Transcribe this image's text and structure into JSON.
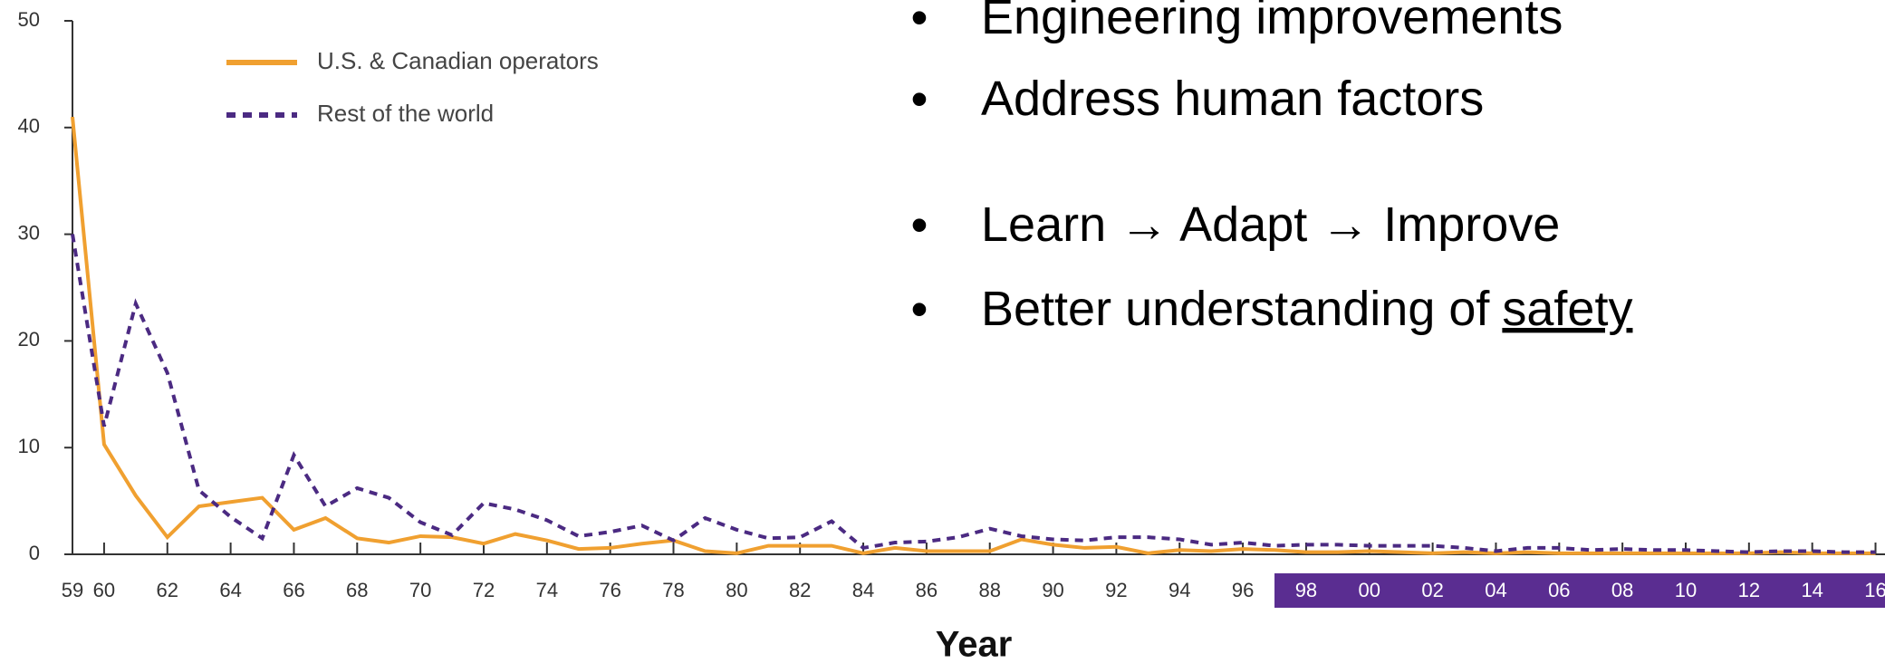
{
  "chart_data": {
    "type": "line",
    "x_label": "Year",
    "x": [
      1959,
      1960,
      1961,
      1962,
      1963,
      1964,
      1965,
      1966,
      1967,
      1968,
      1969,
      1970,
      1971,
      1972,
      1973,
      1974,
      1975,
      1976,
      1977,
      1978,
      1979,
      1980,
      1981,
      1982,
      1983,
      1984,
      1985,
      1986,
      1987,
      1988,
      1989,
      1990,
      1991,
      1992,
      1993,
      1994,
      1995,
      1996,
      1997,
      1998,
      1999,
      2000,
      2001,
      2002,
      2003,
      2004,
      2005,
      2006,
      2007,
      2008,
      2009,
      2010,
      2011,
      2012,
      2013,
      2014,
      2015,
      2016
    ],
    "series": [
      {
        "name": "U.S. & Canadian operators",
        "color": "#f0a030",
        "dash": false,
        "values": [
          41,
          10.3,
          5.5,
          1.6,
          4.5,
          4.9,
          5.3,
          2.3,
          3.4,
          1.5,
          1.1,
          1.7,
          1.6,
          1.0,
          1.9,
          1.3,
          0.5,
          0.6,
          1.0,
          1.3,
          0.3,
          0.1,
          0.8,
          0.8,
          0.8,
          0.1,
          0.6,
          0.3,
          0.3,
          0.3,
          1.4,
          0.9,
          0.6,
          0.7,
          0.1,
          0.4,
          0.3,
          0.5,
          0.4,
          0.2,
          0.2,
          0.3,
          0.2,
          0.1,
          0.2,
          0.1,
          0.2,
          0.1,
          0.1,
          0.1,
          0.1,
          0.1,
          0.1,
          0.1,
          0.2,
          0.1,
          0.1,
          0.1
        ]
      },
      {
        "name": "Rest of the world",
        "color": "#4b2a82",
        "dash": true,
        "values": [
          30,
          12,
          23.5,
          17,
          6,
          3.5,
          1.5,
          9.3,
          4.5,
          6.2,
          5.3,
          3,
          1.8,
          4.8,
          4.2,
          3.2,
          1.7,
          2.1,
          2.7,
          1.3,
          3.4,
          2.3,
          1.5,
          1.6,
          3.1,
          0.6,
          1.1,
          1.2,
          1.6,
          2.4,
          1.7,
          1.4,
          1.3,
          1.6,
          1.6,
          1.4,
          0.9,
          1.1,
          0.8,
          0.9,
          0.9,
          0.8,
          0.8,
          0.8,
          0.6,
          0.3,
          0.6,
          0.6,
          0.4,
          0.5,
          0.4,
          0.4,
          0.3,
          0.2,
          0.3,
          0.3,
          0.2,
          0.2
        ]
      }
    ],
    "xlim": [
      1959,
      2016.3
    ],
    "ylim": [
      0,
      50
    ],
    "yticks": [
      0,
      10,
      20,
      30,
      40,
      50
    ],
    "xticks": [
      {
        "value": 1959,
        "label": "59"
      },
      {
        "value": 1960,
        "label": "60"
      },
      {
        "value": 1962,
        "label": "62"
      },
      {
        "value": 1964,
        "label": "64"
      },
      {
        "value": 1966,
        "label": "66"
      },
      {
        "value": 1968,
        "label": "68"
      },
      {
        "value": 1970,
        "label": "70"
      },
      {
        "value": 1972,
        "label": "72"
      },
      {
        "value": 1974,
        "label": "74"
      },
      {
        "value": 1976,
        "label": "76"
      },
      {
        "value": 1978,
        "label": "78"
      },
      {
        "value": 1980,
        "label": "80"
      },
      {
        "value": 1982,
        "label": "82"
      },
      {
        "value": 1984,
        "label": "84"
      },
      {
        "value": 1986,
        "label": "86"
      },
      {
        "value": 1988,
        "label": "88"
      },
      {
        "value": 1990,
        "label": "90"
      },
      {
        "value": 1992,
        "label": "92"
      },
      {
        "value": 1994,
        "label": "94"
      },
      {
        "value": 1996,
        "label": "96"
      },
      {
        "value": 1998,
        "label": "98"
      },
      {
        "value": 2000,
        "label": "00"
      },
      {
        "value": 2002,
        "label": "02"
      },
      {
        "value": 2004,
        "label": "04"
      },
      {
        "value": 2006,
        "label": "06"
      },
      {
        "value": 2008,
        "label": "08"
      },
      {
        "value": 2010,
        "label": "10"
      },
      {
        "value": 2012,
        "label": "12"
      },
      {
        "value": 2014,
        "label": "14"
      },
      {
        "value": 2016,
        "label": "16"
      }
    ],
    "highlight_range": [
      1997,
      2016.3
    ],
    "highlight_color": "#5a2d91",
    "annotations": [
      {
        "text": "Engineering improvements"
      },
      {
        "text": "Address human factors"
      },
      {
        "text": "Learn → Adapt → Improve"
      },
      {
        "text": "Better understanding of",
        "underlined": "safety"
      }
    ]
  }
}
